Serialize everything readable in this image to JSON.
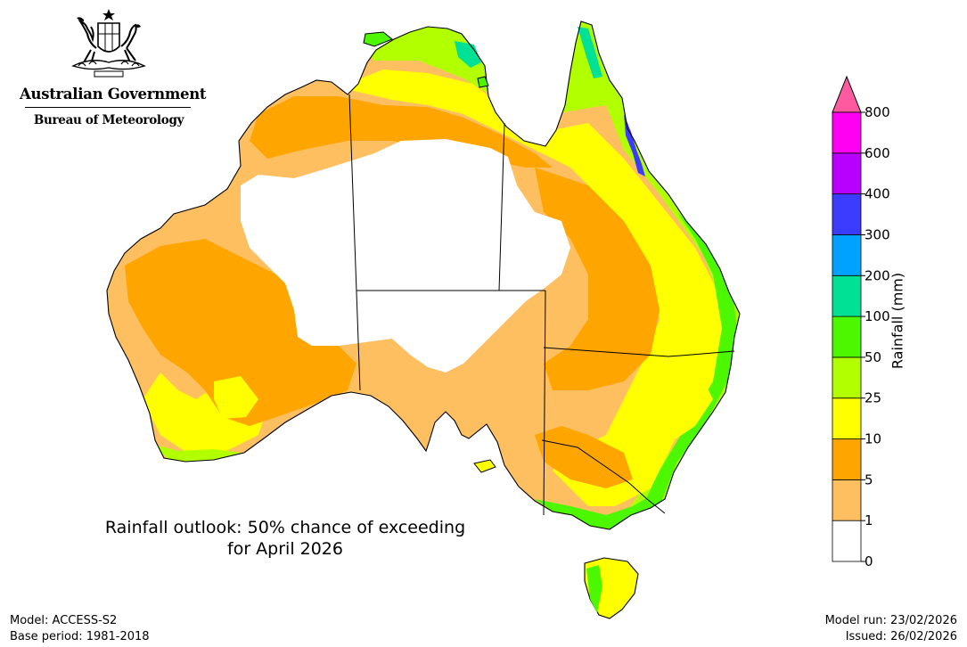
{
  "logo": {
    "government": "Australian Government",
    "bureau": "Bureau of Meteorology",
    "crest": "commonwealth-coat-of-arms-icon"
  },
  "title": {
    "line1": "Rainfall outlook: 50% chance of exceeding",
    "line2": "for April 2026"
  },
  "footer": {
    "model": "Model: ACCESS-S2",
    "base_period": "Base period: 1981-2018",
    "model_run": "Model run: 23/02/2026",
    "issued": "Issued: 26/02/2026"
  },
  "legend": {
    "label": "Rainfall (mm)",
    "ticks": [
      "0",
      "1",
      "5",
      "10",
      "25",
      "50",
      "100",
      "200",
      "300",
      "400",
      "600",
      "800"
    ],
    "colors": [
      "#ffffff",
      "#fdbf5f",
      "#fea500",
      "#ffff00",
      "#b2ff00",
      "#4cf700",
      "#00e196",
      "#00a2ff",
      "#3c3cff",
      "#b700ff",
      "#ff00f3"
    ],
    "overflow_color": "#fe5aa0"
  }
}
